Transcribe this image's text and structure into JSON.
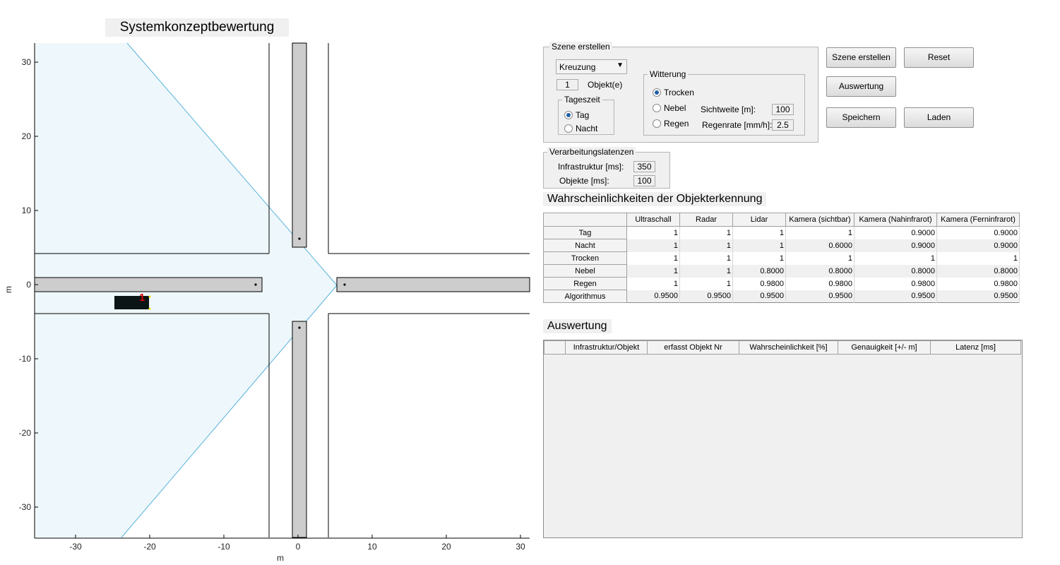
{
  "plot": {
    "title": "Systemkonzeptbewertung",
    "xlabel": "m",
    "ylabel": "m",
    "xticks": [
      "-30",
      "-20",
      "-10",
      "0",
      "10",
      "20",
      "30"
    ],
    "yticks": [
      "30",
      "20",
      "10",
      "0",
      "-10",
      "-20",
      "-30"
    ],
    "object_label": "1"
  },
  "chart_data": {
    "type": "scatter",
    "title": "Systemkonzeptbewertung",
    "xlabel": "m",
    "ylabel": "m",
    "xlim": [
      -35,
      31
    ],
    "ylim": [
      -34,
      33
    ],
    "xticks": [
      -30,
      -20,
      -10,
      0,
      10,
      20,
      30
    ],
    "yticks": [
      30,
      20,
      10,
      0,
      -10,
      -20,
      -30
    ],
    "grid": false,
    "annotations": [
      "1"
    ]
  },
  "scene": {
    "title": "Szene erstellen",
    "scenario_select": "Kreuzung",
    "object_count": "1",
    "object_count_label": "Objekt(e)",
    "tageszeit": {
      "title": "Tageszeit",
      "options": [
        "Tag",
        "Nacht"
      ],
      "selected": "Tag"
    },
    "witterung": {
      "title": "Witterung",
      "options": [
        "Trocken",
        "Nebel",
        "Regen"
      ],
      "selected": "Trocken",
      "sichtweite_label": "Sichtweite [m]:",
      "sichtweite_value": "100",
      "regenrate_label": "Regenrate [mm/h]:",
      "regenrate_value": "2.5"
    }
  },
  "buttons": {
    "szene_erstellen": "Szene erstellen",
    "reset": "Reset",
    "auswertung": "Auswertung",
    "speichern": "Speichern",
    "laden": "Laden"
  },
  "latency": {
    "title": "Verarbeitungslatenzen",
    "infra_label": "Infrastruktur [ms]:",
    "infra_value": "350",
    "objects_label": "Objekte [ms]:",
    "objects_value": "100"
  },
  "probabilities": {
    "heading": "Wahrscheinlichkeiten der Objekterkennung",
    "columns": [
      "Ultraschall",
      "Radar",
      "Lidar",
      "Kamera (sichtbar)",
      "Kamera (Nahinfrarot)",
      "Kamera (Ferninfrarot)"
    ],
    "rows": [
      {
        "label": "Tag",
        "values": [
          "1",
          "1",
          "1",
          "1",
          "0.9000",
          "0.9000"
        ]
      },
      {
        "label": "Nacht",
        "values": [
          "1",
          "1",
          "1",
          "0.6000",
          "0.9000",
          "0.9000"
        ]
      },
      {
        "label": "Trocken",
        "values": [
          "1",
          "1",
          "1",
          "1",
          "1",
          "1"
        ]
      },
      {
        "label": "Nebel",
        "values": [
          "1",
          "1",
          "0.8000",
          "0.8000",
          "0.8000",
          "0.8000"
        ]
      },
      {
        "label": "Regen",
        "values": [
          "1",
          "1",
          "0.9800",
          "0.9800",
          "0.9800",
          "0.9800"
        ]
      },
      {
        "label": "Algorithmus",
        "values": [
          "0.9500",
          "0.9500",
          "0.9500",
          "0.9500",
          "0.9500",
          "0.9500"
        ]
      }
    ]
  },
  "evaluation": {
    "heading": "Auswertung",
    "columns": [
      "",
      "Infrastruktur/Objekt",
      "erfasst Objekt Nr",
      "Wahrscheinlichkeit [%]",
      "Genauigkeit [+/- m]",
      "Latenz [ms]"
    ]
  }
}
